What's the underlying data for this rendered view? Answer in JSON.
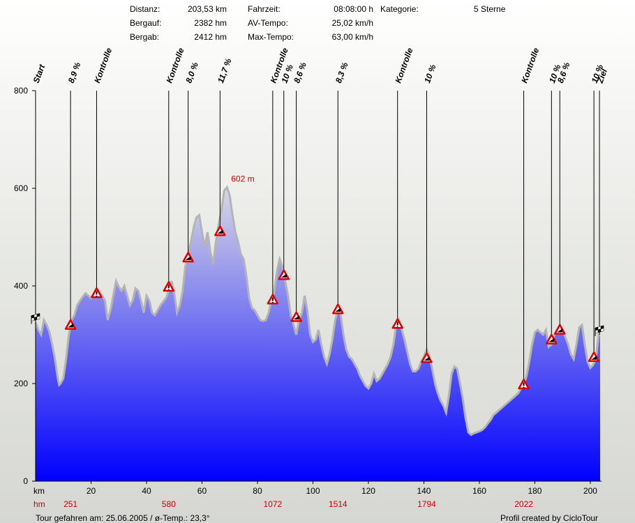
{
  "stats": {
    "distanz_label": "Distanz:",
    "distanz_value": "203,53 km",
    "bergauf_label": "Bergauf:",
    "bergauf_value": "2382 hm",
    "bergab_label": "Bergab:",
    "bergab_value": "2412 hm",
    "fahrzeit_label": "Fahrzeit:",
    "fahrzeit_value": "08:08:00 h",
    "avtempo_label": "AV-Tempo:",
    "avtempo_value": "25,02 km/h",
    "maxtempo_label": "Max-Tempo:",
    "maxtempo_value": "63,00 km/h",
    "kategorie_label": "Kategorie:",
    "kategorie_value": "5 Sterne"
  },
  "footer": {
    "tour": "Tour gefahren am: 25.06.2005  /  ø-Temp.: 23,3°",
    "credit": "Profil created by CicloTour"
  },
  "chart_data": {
    "type": "area",
    "xlim": [
      0,
      203.53
    ],
    "ylim": [
      0,
      800
    ],
    "x_unit_label": "km",
    "hm_row_label": "hm",
    "x_ticks": [
      20,
      40,
      60,
      80,
      100,
      120,
      140,
      160,
      180,
      200
    ],
    "y_ticks": [
      200,
      400,
      600,
      800
    ],
    "fill_top_color": "#d8d8e4",
    "fill_bottom_color": "#0000ff",
    "outline_color": "#b4b4b4",
    "profile": [
      [
        0,
        325
      ],
      [
        1,
        310
      ],
      [
        2,
        300
      ],
      [
        3,
        330
      ],
      [
        4,
        320
      ],
      [
        5,
        305
      ],
      [
        6,
        280
      ],
      [
        7,
        250
      ],
      [
        8,
        210
      ],
      [
        8.5,
        197
      ],
      [
        9,
        200
      ],
      [
        10,
        210
      ],
      [
        11,
        250
      ],
      [
        12,
        300
      ],
      [
        13,
        330
      ],
      [
        14,
        340
      ],
      [
        15,
        360
      ],
      [
        16,
        370
      ],
      [
        17,
        378
      ],
      [
        18,
        385
      ],
      [
        19,
        380
      ],
      [
        20,
        375
      ],
      [
        21,
        385
      ],
      [
        22,
        395
      ],
      [
        23,
        388
      ],
      [
        24,
        380
      ],
      [
        25,
        370
      ],
      [
        26,
        330
      ],
      [
        27,
        350
      ],
      [
        28,
        380
      ],
      [
        29,
        410
      ],
      [
        30,
        398
      ],
      [
        31,
        390
      ],
      [
        32,
        400
      ],
      [
        33,
        380
      ],
      [
        34,
        360
      ],
      [
        35,
        370
      ],
      [
        36,
        395
      ],
      [
        37,
        390
      ],
      [
        38,
        370
      ],
      [
        39,
        345
      ],
      [
        40,
        380
      ],
      [
        41,
        370
      ],
      [
        42,
        345
      ],
      [
        43,
        340
      ],
      [
        44,
        350
      ],
      [
        45,
        360
      ],
      [
        46,
        368
      ],
      [
        47,
        375
      ],
      [
        48,
        390
      ],
      [
        49,
        410
      ],
      [
        50,
        385
      ],
      [
        51,
        345
      ],
      [
        52,
        360
      ],
      [
        53,
        390
      ],
      [
        54,
        440
      ],
      [
        55,
        465
      ],
      [
        56,
        490
      ],
      [
        57,
        520
      ],
      [
        58,
        540
      ],
      [
        59,
        545
      ],
      [
        60,
        510
      ],
      [
        61,
        480
      ],
      [
        62,
        510
      ],
      [
        63,
        470
      ],
      [
        64,
        445
      ],
      [
        65,
        490
      ],
      [
        66,
        525
      ],
      [
        67,
        555
      ],
      [
        68,
        595
      ],
      [
        69,
        602
      ],
      [
        70,
        585
      ],
      [
        71,
        545
      ],
      [
        72,
        510
      ],
      [
        73,
        490
      ],
      [
        74,
        465
      ],
      [
        75,
        455
      ],
      [
        76,
        420
      ],
      [
        77,
        375
      ],
      [
        78,
        355
      ],
      [
        79,
        350
      ],
      [
        80,
        340
      ],
      [
        81,
        330
      ],
      [
        82,
        328
      ],
      [
        83,
        330
      ],
      [
        84,
        345
      ],
      [
        85,
        370
      ],
      [
        86,
        385
      ],
      [
        87,
        430
      ],
      [
        88,
        455
      ],
      [
        89,
        440
      ],
      [
        90,
        410
      ],
      [
        91,
        380
      ],
      [
        92,
        340
      ],
      [
        93,
        320
      ],
      [
        94,
        300
      ],
      [
        95,
        330
      ],
      [
        96,
        345
      ],
      [
        97,
        380
      ],
      [
        98,
        350
      ],
      [
        99,
        300
      ],
      [
        100,
        285
      ],
      [
        101,
        290
      ],
      [
        102,
        310
      ],
      [
        103,
        280
      ],
      [
        104,
        255
      ],
      [
        105,
        240
      ],
      [
        106,
        260
      ],
      [
        107,
        290
      ],
      [
        108,
        330
      ],
      [
        109,
        350
      ],
      [
        110,
        340
      ],
      [
        111,
        300
      ],
      [
        112,
        270
      ],
      [
        113,
        255
      ],
      [
        114,
        250
      ],
      [
        115,
        240
      ],
      [
        116,
        230
      ],
      [
        117,
        215
      ],
      [
        118,
        205
      ],
      [
        119,
        195
      ],
      [
        120,
        190
      ],
      [
        121,
        200
      ],
      [
        122,
        220
      ],
      [
        123,
        205
      ],
      [
        124,
        210
      ],
      [
        125,
        220
      ],
      [
        126,
        230
      ],
      [
        127,
        240
      ],
      [
        128,
        255
      ],
      [
        129,
        280
      ],
      [
        130,
        320
      ],
      [
        131,
        330
      ],
      [
        132,
        310
      ],
      [
        133,
        290
      ],
      [
        134,
        265
      ],
      [
        135,
        240
      ],
      [
        136,
        225
      ],
      [
        137,
        225
      ],
      [
        138,
        230
      ],
      [
        139,
        245
      ],
      [
        140,
        255
      ],
      [
        141,
        270
      ],
      [
        142,
        255
      ],
      [
        143,
        230
      ],
      [
        144,
        200
      ],
      [
        145,
        180
      ],
      [
        146,
        165
      ],
      [
        147,
        155
      ],
      [
        148,
        140
      ],
      [
        149,
        175
      ],
      [
        150,
        220
      ],
      [
        151,
        235
      ],
      [
        152,
        230
      ],
      [
        153,
        200
      ],
      [
        154,
        170
      ],
      [
        155,
        130
      ],
      [
        156,
        100
      ],
      [
        157,
        95
      ],
      [
        158,
        98
      ],
      [
        159,
        100
      ],
      [
        160,
        102
      ],
      [
        161,
        105
      ],
      [
        162,
        110
      ],
      [
        163,
        118
      ],
      [
        164,
        125
      ],
      [
        165,
        135
      ],
      [
        166,
        140
      ],
      [
        167,
        145
      ],
      [
        168,
        150
      ],
      [
        169,
        155
      ],
      [
        170,
        160
      ],
      [
        171,
        165
      ],
      [
        172,
        170
      ],
      [
        173,
        175
      ],
      [
        174,
        180
      ],
      [
        175,
        190
      ],
      [
        176,
        198
      ],
      [
        177,
        215
      ],
      [
        178,
        245
      ],
      [
        179,
        280
      ],
      [
        180,
        305
      ],
      [
        181,
        310
      ],
      [
        182,
        305
      ],
      [
        183,
        300
      ],
      [
        184,
        310
      ],
      [
        185,
        275
      ],
      [
        186,
        280
      ],
      [
        187,
        300
      ],
      [
        188,
        310
      ],
      [
        189,
        320
      ],
      [
        190,
        310
      ],
      [
        191,
        295
      ],
      [
        192,
        280
      ],
      [
        193,
        260
      ],
      [
        194,
        250
      ],
      [
        195,
        280
      ],
      [
        196,
        315
      ],
      [
        197,
        320
      ],
      [
        198,
        280
      ],
      [
        199,
        245
      ],
      [
        200,
        232
      ],
      [
        201,
        238
      ],
      [
        202,
        250
      ],
      [
        203,
        300
      ],
      [
        203.53,
        300
      ]
    ],
    "peak": {
      "x": 69,
      "y": 602,
      "label": "602 m"
    },
    "markers": [
      {
        "x": 0,
        "y": 325,
        "label": "Start",
        "type": "flag"
      },
      {
        "x": 12.6,
        "y": 320,
        "label": "8,9 %",
        "type": "climb"
      },
      {
        "x": 22,
        "y": 385,
        "label": "Kontrolle",
        "type": "control"
      },
      {
        "x": 48,
        "y": 398,
        "label": "Kontrolle",
        "type": "control"
      },
      {
        "x": 55,
        "y": 458,
        "label": "8,0 %",
        "type": "climb"
      },
      {
        "x": 66.5,
        "y": 512,
        "label": "11,7 %",
        "type": "climb"
      },
      {
        "x": 85.5,
        "y": 372,
        "label": "Kontrolle",
        "type": "control"
      },
      {
        "x": 89.5,
        "y": 422,
        "label": "10 %",
        "type": "climb"
      },
      {
        "x": 94,
        "y": 336,
        "label": "8,6 %",
        "type": "climb"
      },
      {
        "x": 109,
        "y": 352,
        "label": "8,3 %",
        "type": "climb"
      },
      {
        "x": 130.5,
        "y": 322,
        "label": "Kontrolle",
        "type": "control"
      },
      {
        "x": 141,
        "y": 252,
        "label": "10 %",
        "type": "climb"
      },
      {
        "x": 176,
        "y": 198,
        "label": "Kontrolle",
        "type": "control"
      },
      {
        "x": 186,
        "y": 290,
        "label": "10 %",
        "type": "climb"
      },
      {
        "x": 189,
        "y": 310,
        "label": "8,6 %",
        "type": "climb"
      },
      {
        "x": 201.3,
        "y": 254,
        "label": "10 %",
        "type": "climb"
      },
      {
        "x": 203.3,
        "y": 300,
        "label": "Ziel",
        "type": "flag"
      }
    ],
    "hm_values": [
      {
        "x": 12.6,
        "label": "251"
      },
      {
        "x": 48,
        "label": "580"
      },
      {
        "x": 85.5,
        "label": "1072"
      },
      {
        "x": 109,
        "label": "1514"
      },
      {
        "x": 141,
        "label": "1794"
      },
      {
        "x": 176,
        "label": "2022"
      }
    ]
  }
}
